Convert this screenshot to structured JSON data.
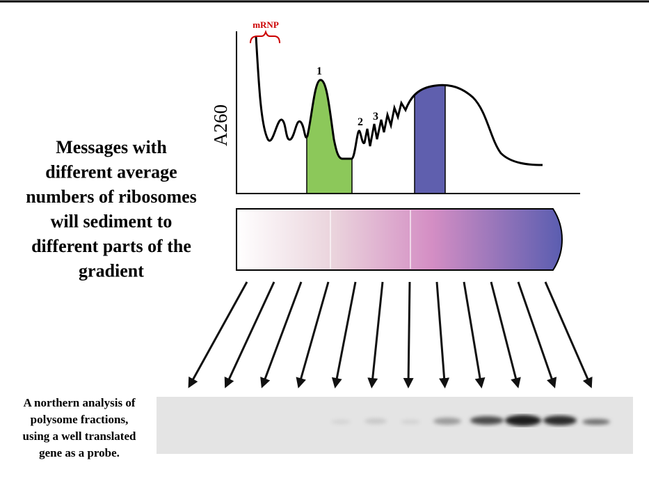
{
  "profile": {
    "mrnp_label": "mRNP",
    "peak_labels": [
      "1",
      "2",
      "3"
    ],
    "y_axis_label": "A260"
  },
  "description": {
    "lines": [
      "Messages with",
      "different average",
      "numbers of ribosomes",
      "will sediment to",
      "different parts of the",
      "gradient"
    ]
  },
  "northern_caption": {
    "lines": [
      "A northern analysis of",
      "polysome fractions,",
      "using a well translated",
      "gene as a probe."
    ]
  }
}
